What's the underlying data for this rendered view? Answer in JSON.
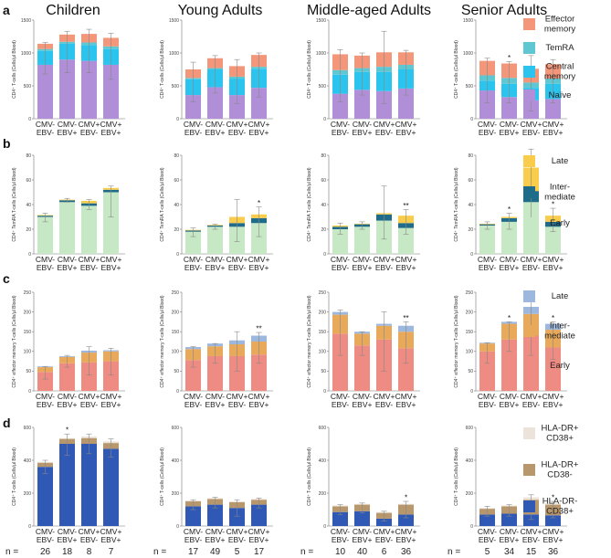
{
  "column_titles": [
    "Children",
    "Young Adults",
    "Middle-aged Adults",
    "Senior Adults"
  ],
  "panel_letters": [
    "a",
    "b",
    "c",
    "d"
  ],
  "categories": [
    [
      "CMV-",
      "EBV-"
    ],
    [
      "CMV-",
      "EBV+"
    ],
    [
      "CMV+",
      "EBV-"
    ],
    [
      "CMV+",
      "EBV+"
    ]
  ],
  "n_label": "n =",
  "n_values": [
    [
      "26",
      "18",
      "8",
      "7"
    ],
    [
      "17",
      "49",
      "5",
      "17"
    ],
    [
      "10",
      "40",
      "6",
      "36"
    ],
    [
      "5",
      "34",
      "15",
      "36"
    ]
  ],
  "rows": [
    {
      "letter": "a",
      "ylabel": "CD4⁺ T-cells (Cells/µl Blood)",
      "ylim": [
        0,
        1500
      ],
      "ticks": [
        0,
        500,
        1000,
        1500
      ],
      "legend": [
        {
          "label": "Effector memory",
          "color": "#f4967a"
        },
        {
          "label": "TemRA",
          "color": "#5ec7d2"
        },
        {
          "label": "Central memory",
          "color": "#2bc4ee"
        },
        {
          "label": "Naïve",
          "color": "#b08fd8"
        }
      ]
    },
    {
      "letter": "b",
      "ylabel": "CD4⁺ TemRA T-cells (Cells/µl Blood)",
      "ylim": [
        0,
        80
      ],
      "ticks": [
        0,
        20,
        40,
        60,
        80
      ],
      "legend": [
        {
          "label": "Late",
          "color": "#f9cc4c"
        },
        {
          "label": "Inter-mediate",
          "color": "#1f6b8a"
        },
        {
          "label": "Early",
          "color": "#c7e8c4"
        }
      ]
    },
    {
      "letter": "c",
      "ylabel": "CD4⁺ effector memory T-cells (Cells/µl Blood)",
      "ylim": [
        0,
        250
      ],
      "ticks": [
        0,
        50,
        100,
        150,
        200,
        250
      ],
      "legend": [
        {
          "label": "Late",
          "color": "#9db8de"
        },
        {
          "label": "Inter-mediate",
          "color": "#e8a95a"
        },
        {
          "label": "Early",
          "color": "#ee8b83"
        }
      ]
    },
    {
      "letter": "d",
      "ylabel": "CD4⁺ T-cells (Cells/µl Blood)",
      "ylim": [
        0,
        600
      ],
      "ticks": [
        0,
        200,
        400,
        600
      ],
      "legend": [
        {
          "label": "HLA-DR+ CD38+",
          "color": "#ece4da"
        },
        {
          "label": "HLA-DR+ CD38-",
          "color": "#b9976c"
        },
        {
          "label": "HLA-DR- CD38+",
          "color": "#2f59b5"
        }
      ]
    }
  ],
  "chart_data": [
    {
      "type": "bar",
      "stacked": true,
      "panel": "a",
      "ylabel": "CD4⁺ T-cells (Cells/µl Blood)",
      "ylim": [
        0,
        1500
      ],
      "categories": [
        "CMV- EBV-",
        "CMV- EBV+",
        "CMV+ EBV-",
        "CMV+ EBV+"
      ],
      "series_order_bottom_to_top": [
        "Naïve",
        "Central memory",
        "TemRA",
        "Effector memory"
      ],
      "groups": [
        {
          "name": "Children",
          "stacks": [
            [
              820,
              210,
              30,
              80
            ],
            [
              900,
              240,
              30,
              110
            ],
            [
              880,
              240,
              40,
              130
            ],
            [
              820,
              240,
              40,
              130
            ]
          ],
          "err": [
            [
              680,
              1160
            ],
            [
              700,
              1330
            ],
            [
              700,
              1360
            ],
            [
              600,
              1300
            ]
          ],
          "marks": [
            "",
            "",
            "",
            ""
          ]
        },
        {
          "name": "Young Adults",
          "stacks": [
            [
              360,
              240,
              20,
              130
            ],
            [
              480,
              270,
              20,
              150
            ],
            [
              360,
              250,
              30,
              160
            ],
            [
              470,
              290,
              30,
              180
            ]
          ],
          "err": [
            [
              260,
              860
            ],
            [
              390,
              960
            ],
            [
              230,
              900
            ],
            [
              330,
              1000
            ]
          ],
          "marks": [
            "",
            "",
            "",
            ""
          ]
        },
        {
          "name": "Middle-aged Adults",
          "stacks": [
            [
              380,
              290,
              70,
              240
            ],
            [
              440,
              270,
              60,
              190
            ],
            [
              420,
              290,
              80,
              220
            ],
            [
              460,
              290,
              70,
              190
            ]
          ],
          "err": [
            [
              260,
              1050
            ],
            [
              360,
              1000
            ],
            [
              230,
              1330
            ],
            [
              360,
              1040
            ]
          ],
          "marks": [
            "",
            "",
            "",
            ""
          ]
        },
        {
          "name": "Senior Adults",
          "stacks": [
            [
              430,
              150,
              80,
              220
            ],
            [
              330,
              200,
              90,
              220
            ],
            [
              280,
              190,
              80,
              210
            ],
            [
              300,
              230,
              80,
              220
            ]
          ],
          "err": [
            [
              240,
              920
            ],
            [
              240,
              870
            ],
            [
              120,
              960
            ],
            [
              240,
              900
            ]
          ],
          "marks": [
            "",
            "*",
            "*",
            ""
          ]
        }
      ]
    },
    {
      "type": "bar",
      "stacked": true,
      "panel": "b",
      "ylabel": "CD4⁺ TemRA T-cells (Cells/µl Blood)",
      "ylim": [
        0,
        80
      ],
      "categories": [
        "CMV- EBV-",
        "CMV- EBV+",
        "CMV+ EBV-",
        "CMV+ EBV+"
      ],
      "series_order_bottom_to_top": [
        "Early",
        "Inter-mediate",
        "Late"
      ],
      "groups": [
        {
          "name": "Children",
          "stacks": [
            [
              30,
              1,
              0.5
            ],
            [
              42,
              1.5,
              0.5
            ],
            [
              39,
              2,
              2
            ],
            [
              50,
              2,
              1.5
            ]
          ],
          "err": [
            [
              26,
              33
            ],
            [
              42,
              45
            ],
            [
              36,
              44
            ],
            [
              30,
              55
            ]
          ],
          "marks": [
            "",
            "",
            "",
            ""
          ]
        },
        {
          "name": "Young Adults",
          "stacks": [
            [
              18,
              1,
              0.5
            ],
            [
              22,
              1,
              0.5
            ],
            [
              22,
              3,
              5
            ],
            [
              25,
              4,
              3
            ]
          ],
          "err": [
            [
              14,
              21
            ],
            [
              20,
              24
            ],
            [
              10,
              44
            ],
            [
              14,
              38
            ]
          ],
          "marks": [
            "",
            "",
            "",
            "*"
          ]
        },
        {
          "name": "Middle-aged Adults",
          "stacks": [
            [
              20,
              2,
              1
            ],
            [
              22,
              2,
              0.5
            ],
            [
              27,
              5,
              1
            ],
            [
              21,
              4,
              6
            ]
          ],
          "err": [
            [
              16,
              25
            ],
            [
              20,
              26
            ],
            [
              12,
              55
            ],
            [
              16,
              36
            ]
          ],
          "marks": [
            "",
            "",
            "",
            "**"
          ]
        },
        {
          "name": "Senior Adults",
          "stacks": [
            [
              23,
              1,
              0.5
            ],
            [
              26,
              3,
              1
            ],
            [
              42,
              9,
              19
            ],
            [
              22,
              4,
              5
            ]
          ],
          "err": [
            [
              20,
              26
            ],
            [
              20,
              33
            ],
            [
              28,
              85
            ],
            [
              18,
              37
            ]
          ],
          "marks": [
            "",
            "*",
            "",
            "*"
          ]
        }
      ]
    },
    {
      "type": "bar",
      "stacked": true,
      "panel": "c",
      "ylabel": "CD4⁺ effector memory T-cells (Cells/µl Blood)",
      "ylim": [
        0,
        250
      ],
      "categories": [
        "CMV- EBV-",
        "CMV- EBV+",
        "CMV+ EBV-",
        "CMV+ EBV+"
      ],
      "series_order_bottom_to_top": [
        "Early",
        "Inter-mediate",
        "Late"
      ],
      "groups": [
        {
          "name": "Children",
          "stacks": [
            [
              48,
              12,
              2
            ],
            [
              70,
              16,
              2
            ],
            [
              72,
              25,
              5
            ],
            [
              75,
              25,
              3
            ]
          ],
          "err": [
            [
              30,
              62
            ],
            [
              60,
              90
            ],
            [
              40,
              112
            ],
            [
              40,
              108
            ]
          ],
          "marks": [
            "",
            "",
            "",
            ""
          ]
        },
        {
          "name": "Young Adults",
          "stacks": [
            [
              78,
              28,
              5
            ],
            [
              88,
              25,
              7
            ],
            [
              88,
              30,
              10
            ],
            [
              92,
              33,
              15
            ]
          ],
          "err": [
            [
              60,
              112
            ],
            [
              70,
              120
            ],
            [
              50,
              150
            ],
            [
              70,
              148
            ]
          ],
          "marks": [
            "",
            "",
            "",
            "**"
          ]
        },
        {
          "name": "Middle-aged Adults",
          "stacks": [
            [
              145,
              48,
              7
            ],
            [
              115,
              30,
              5
            ],
            [
              130,
              35,
              5
            ],
            [
              108,
              42,
              15
            ]
          ],
          "err": [
            [
              90,
              205
            ],
            [
              90,
              150
            ],
            [
              50,
              200
            ],
            [
              70,
              175
            ]
          ],
          "marks": [
            "",
            "",
            "",
            "**"
          ]
        },
        {
          "name": "Senior Adults",
          "stacks": [
            [
              100,
              20,
              2
            ],
            [
              130,
              40,
              5
            ],
            [
              140,
              55,
              18
            ],
            [
              110,
              45,
              15
            ]
          ],
          "err": [
            [
              70,
              122
            ],
            [
              100,
              175
            ],
            [
              90,
              230
            ],
            [
              80,
              175
            ]
          ],
          "marks": [
            "",
            "*",
            "*",
            "*"
          ]
        }
      ]
    },
    {
      "type": "bar",
      "stacked": true,
      "panel": "d",
      "ylabel": "CD4⁺ T-cells (Cells/µl Blood)",
      "ylim": [
        0,
        600
      ],
      "categories": [
        "CMV- EBV-",
        "CMV- EBV+",
        "CMV+ EBV-",
        "CMV+ EBV+"
      ],
      "series_order_bottom_to_top": [
        "HLA-DR- CD38+",
        "HLA-DR+ CD38-",
        "HLA-DR+ CD38+"
      ],
      "groups": [
        {
          "name": "Children",
          "stacks": [
            [
              360,
              25,
              5
            ],
            [
              500,
              30,
              5
            ],
            [
              500,
              35,
              10
            ],
            [
              470,
              35,
              10
            ]
          ],
          "err": [
            [
              320,
              400
            ],
            [
              430,
              560
            ],
            [
              440,
              560
            ],
            [
              420,
              530
            ]
          ],
          "marks": [
            "",
            "*",
            "",
            ""
          ]
        },
        {
          "name": "Young Adults",
          "stacks": [
            [
              120,
              30,
              5
            ],
            [
              130,
              35,
              5
            ],
            [
              110,
              35,
              5
            ],
            [
              130,
              30,
              5
            ]
          ],
          "err": [
            [
              100,
              160
            ],
            [
              110,
              175
            ],
            [
              60,
              160
            ],
            [
              110,
              170
            ]
          ],
          "marks": [
            "",
            "",
            "",
            ""
          ]
        },
        {
          "name": "Middle-aged Adults",
          "stacks": [
            [
              85,
              35,
              5
            ],
            [
              90,
              40,
              5
            ],
            [
              45,
              35,
              5
            ],
            [
              70,
              60,
              5
            ]
          ],
          "err": [
            [
              70,
              130
            ],
            [
              80,
              140
            ],
            [
              30,
              90
            ],
            [
              50,
              150
            ]
          ],
          "marks": [
            "",
            "",
            "",
            "*"
          ]
        },
        {
          "name": "Senior Adults",
          "stacks": [
            [
              70,
              35,
              5
            ],
            [
              75,
              45,
              5
            ],
            [
              70,
              90,
              15
            ],
            [
              65,
              65,
              10
            ]
          ],
          "err": [
            [
              60,
              120
            ],
            [
              60,
              130
            ],
            [
              40,
              190
            ],
            [
              50,
              150
            ]
          ],
          "marks": [
            "",
            "",
            "",
            "*"
          ]
        }
      ]
    }
  ]
}
